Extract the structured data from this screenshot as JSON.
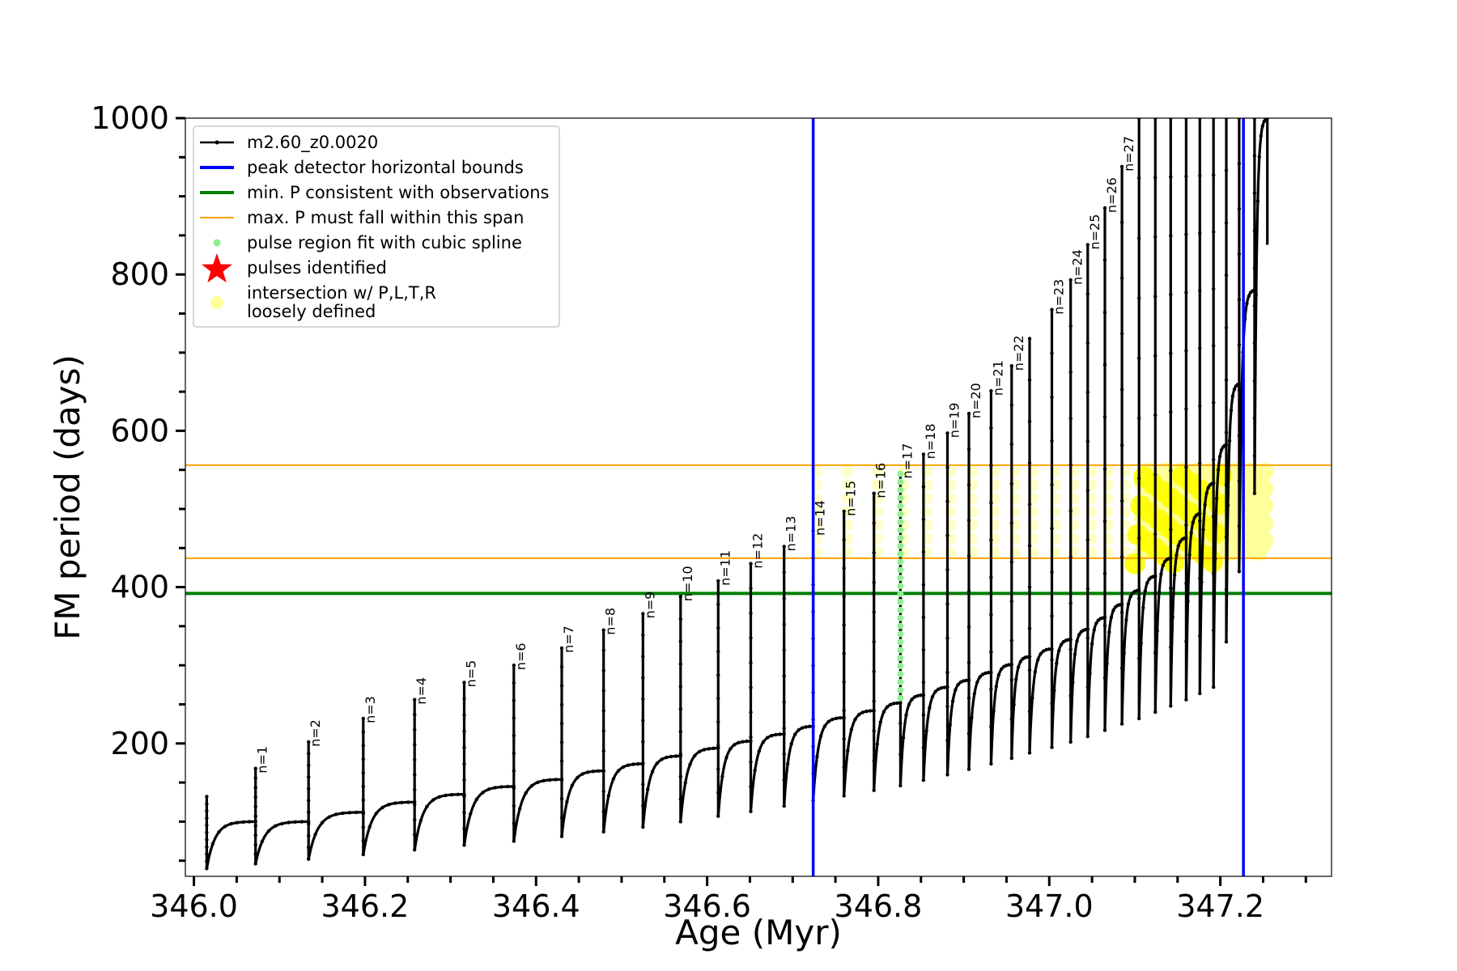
{
  "chart_data": {
    "type": "line",
    "xlabel": "Age (Myr)",
    "ylabel": "FM period (days)",
    "xlim": [
      345.99,
      347.33
    ],
    "ylim": [
      30,
      1000
    ],
    "xticks": [
      "346.0",
      "346.2",
      "346.4",
      "346.6",
      "346.8",
      "347.0",
      "347.2"
    ],
    "xtick_values": [
      346.0,
      346.2,
      346.4,
      346.6,
      346.8,
      347.0,
      347.2
    ],
    "yticks": [
      "200",
      "400",
      "600",
      "800",
      "1000"
    ],
    "ytick_values": [
      200,
      400,
      600,
      800,
      1000
    ],
    "legend_position": "upper left",
    "legend": [
      {
        "label": "m2.60_z0.0020",
        "style": "line-dot",
        "color": "#000000"
      },
      {
        "label": "peak detector horizontal bounds",
        "style": "line",
        "color": "#0000ff"
      },
      {
        "label": "min. P consistent with observations",
        "style": "line",
        "color": "#008000"
      },
      {
        "label": "max. P must fall within this span",
        "style": "thin-line",
        "color": "#ffa500"
      },
      {
        "label": "pulse region fit with cubic spline",
        "style": "dot",
        "color": "#90ee90"
      },
      {
        "label": "pulses identified",
        "style": "star",
        "color": "#ff0000"
      },
      {
        "label": "intersection w/ P,L,T,R\nloosely defined",
        "style": "big-dot",
        "color": "#ffff99"
      }
    ],
    "vertical_lines": [
      {
        "x": 346.724,
        "color": "#0000ff"
      },
      {
        "x": 347.227,
        "color": "#0000ff"
      }
    ],
    "min_period_line": {
      "y": 392,
      "color": "#008000"
    },
    "max_period_span": {
      "y": [
        437,
        556
      ],
      "color": "#ffa500"
    },
    "pulses": [
      {
        "n": 1,
        "age": 346.072,
        "peak": 168,
        "low": 46,
        "end_value": 100
      },
      {
        "n": 2,
        "age": 346.134,
        "peak": 202,
        "low": 52,
        "end_value": 112
      },
      {
        "n": 3,
        "age": 346.198,
        "peak": 232,
        "low": 58,
        "end_value": 125
      },
      {
        "n": 4,
        "age": 346.258,
        "peak": 256,
        "low": 64,
        "end_value": 135
      },
      {
        "n": 5,
        "age": 346.316,
        "peak": 278,
        "low": 70,
        "end_value": 145
      },
      {
        "n": 6,
        "age": 346.374,
        "peak": 300,
        "low": 75,
        "end_value": 154
      },
      {
        "n": 7,
        "age": 346.43,
        "peak": 322,
        "low": 81,
        "end_value": 165
      },
      {
        "n": 8,
        "age": 346.479,
        "peak": 345,
        "low": 87,
        "end_value": 174
      },
      {
        "n": 9,
        "age": 346.525,
        "peak": 366,
        "low": 93,
        "end_value": 184
      },
      {
        "n": 10,
        "age": 346.569,
        "peak": 388,
        "low": 100,
        "end_value": 194
      },
      {
        "n": 11,
        "age": 346.613,
        "peak": 408,
        "low": 107,
        "end_value": 203
      },
      {
        "n": 12,
        "age": 346.651,
        "peak": 430,
        "low": 113,
        "end_value": 212
      },
      {
        "n": 13,
        "age": 346.69,
        "peak": 452,
        "low": 120,
        "end_value": 222
      },
      {
        "n": 14,
        "age": 346.724,
        "peak": 472,
        "low": 127,
        "end_value": 233
      },
      {
        "n": 15,
        "age": 346.76,
        "peak": 497,
        "low": 133,
        "end_value": 242
      },
      {
        "n": 16,
        "age": 346.795,
        "peak": 520,
        "low": 140,
        "end_value": 252
      },
      {
        "n": 17,
        "age": 346.826,
        "peak": 545,
        "low": 146,
        "end_value": 262
      },
      {
        "n": 18,
        "age": 346.853,
        "peak": 570,
        "low": 153,
        "end_value": 272
      },
      {
        "n": 19,
        "age": 346.881,
        "peak": 597,
        "low": 160,
        "end_value": 281
      },
      {
        "n": 20,
        "age": 346.906,
        "peak": 622,
        "low": 167,
        "end_value": 291
      },
      {
        "n": 21,
        "age": 346.932,
        "peak": 651,
        "low": 174,
        "end_value": 301
      },
      {
        "n": 22,
        "age": 346.956,
        "peak": 683,
        "low": 181,
        "end_value": 311
      },
      {
        "n": 23,
        "age": 347.003,
        "peak": 755,
        "low": 195,
        "end_value": 333
      },
      {
        "n": 24,
        "age": 347.025,
        "peak": 793,
        "low": 202,
        "end_value": 346
      },
      {
        "n": 25,
        "age": 347.045,
        "peak": 838,
        "low": 209,
        "end_value": 361
      },
      {
        "n": 26,
        "age": 347.065,
        "peak": 885,
        "low": 217,
        "end_value": 378
      },
      {
        "n": 27,
        "age": 347.085,
        "peak": 938,
        "low": 225,
        "end_value": 396
      }
    ],
    "unlabeled_pulses": [
      {
        "age": 346.977,
        "peak": 718,
        "low": 188,
        "end_value": 321
      },
      {
        "age": 347.105,
        "peak": 1000,
        "low": 232,
        "end_value": 414
      },
      {
        "age": 347.124,
        "peak": 1000,
        "low": 240,
        "end_value": 437
      },
      {
        "age": 347.142,
        "peak": 1000,
        "low": 248,
        "end_value": 463
      },
      {
        "age": 347.16,
        "peak": 1000,
        "low": 256,
        "end_value": 494
      },
      {
        "age": 347.176,
        "peak": 1000,
        "low": 264,
        "end_value": 533
      },
      {
        "age": 347.192,
        "peak": 1000,
        "low": 272,
        "end_value": 582
      },
      {
        "age": 347.207,
        "peak": 1000,
        "low": 330,
        "end_value": 660
      },
      {
        "age": 347.222,
        "peak": 1000,
        "low": 420,
        "end_value": 780
      },
      {
        "age": 347.24,
        "peak": 1000,
        "low": 520,
        "end_value": 930
      }
    ],
    "first_segment": {
      "start_age": 346.015,
      "start_peak": 132,
      "low": 40
    },
    "final_track": {
      "age_start": 347.255,
      "age_end": 347.268,
      "value_top": 1000,
      "value_bottom": 838
    },
    "spline_fit_region": {
      "age": 346.826,
      "y_range": [
        258,
        545
      ]
    }
  }
}
